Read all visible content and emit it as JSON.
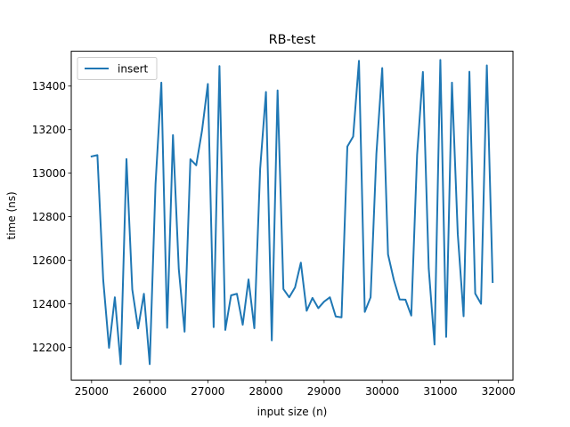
{
  "chart_data": {
    "type": "line",
    "title": "RB-test",
    "xlabel": "input size (n)",
    "ylabel": "time (ns)",
    "xlim": [
      24650,
      32250
    ],
    "ylim": [
      12050,
      13560
    ],
    "xticks": [
      25000,
      26000,
      27000,
      28000,
      29000,
      30000,
      31000,
      32000
    ],
    "yticks": [
      12200,
      12400,
      12600,
      12800,
      13000,
      13200,
      13400
    ],
    "legend": {
      "position": "top-left",
      "entries": [
        "insert"
      ]
    },
    "grid": false,
    "series": [
      {
        "name": "insert",
        "color": "#1f77b4",
        "x": [
          25000,
          25100,
          25200,
          25300,
          25400,
          25500,
          25600,
          25700,
          25800,
          25900,
          26000,
          26100,
          26200,
          26300,
          26400,
          26500,
          26600,
          26700,
          26800,
          26900,
          27000,
          27100,
          27200,
          27300,
          27400,
          27500,
          27600,
          27700,
          27800,
          27900,
          28000,
          28100,
          28200,
          28300,
          28400,
          28500,
          28600,
          28700,
          28800,
          28900,
          29000,
          29100,
          29200,
          29300,
          29400,
          29500,
          29600,
          29700,
          29800,
          29900,
          30000,
          30100,
          30200,
          30300,
          30400,
          30500,
          30600,
          30700,
          30800,
          30900,
          31000,
          31100,
          31200,
          31300,
          31400,
          31500,
          31600,
          31700,
          31800,
          31900
        ],
        "values": [
          13077,
          13083,
          12510,
          12198,
          12430,
          12123,
          13065,
          12466,
          12287,
          12446,
          12123,
          12950,
          13416,
          12290,
          13175,
          12560,
          12272,
          13064,
          13036,
          13196,
          13410,
          12293,
          13492,
          12280,
          12439,
          12446,
          12304,
          12512,
          12288,
          13020,
          13373,
          12232,
          13380,
          12468,
          12430,
          12475,
          12589,
          12368,
          12427,
          12380,
          12410,
          12430,
          12342,
          12338,
          13122,
          13168,
          13516,
          12363,
          12430,
          13090,
          13483,
          12627,
          12510,
          12420,
          12419,
          12346,
          13084,
          13465,
          12563,
          12213,
          13520,
          12248,
          13416,
          12720,
          12343,
          13466,
          12447,
          12400,
          13495,
          12500
        ]
      }
    ]
  }
}
